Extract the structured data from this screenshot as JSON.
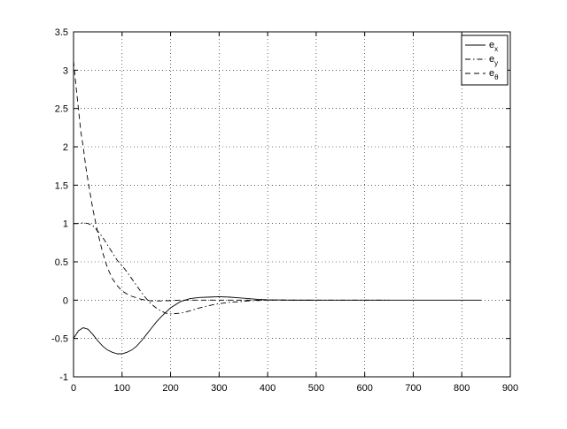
{
  "chart_data": {
    "type": "line",
    "title": "",
    "xlabel": "",
    "ylabel": "",
    "xlim": [
      0,
      900
    ],
    "ylim": [
      -1,
      3.5
    ],
    "xticks": [
      0,
      100,
      200,
      300,
      400,
      500,
      600,
      700,
      800,
      900
    ],
    "yticks": [
      -1,
      -0.5,
      0,
      0.5,
      1,
      1.5,
      2,
      2.5,
      3,
      3.5
    ],
    "xtick_labels": [
      "0",
      "100",
      "200",
      "300",
      "400",
      "500",
      "600",
      "700",
      "800",
      "900"
    ],
    "ytick_labels": [
      "-1",
      "-0.5",
      "0",
      "0.5",
      "1",
      "1.5",
      "2",
      "2.5",
      "3",
      "3.5"
    ],
    "grid": true,
    "legend_position": "top-right",
    "series": [
      {
        "name": "e",
        "subscript": "x",
        "style": "solid",
        "color": "#000000",
        "x": [
          0,
          10,
          20,
          30,
          40,
          50,
          60,
          70,
          80,
          90,
          100,
          110,
          120,
          130,
          140,
          150,
          160,
          170,
          180,
          190,
          200,
          220,
          240,
          260,
          280,
          300,
          320,
          340,
          360,
          380,
          400,
          450,
          500,
          600,
          700,
          840
        ],
        "y": [
          -0.5,
          -0.4,
          -0.36,
          -0.38,
          -0.45,
          -0.53,
          -0.6,
          -0.65,
          -0.68,
          -0.7,
          -0.7,
          -0.68,
          -0.65,
          -0.6,
          -0.53,
          -0.45,
          -0.37,
          -0.29,
          -0.22,
          -0.16,
          -0.1,
          -0.02,
          0.02,
          0.035,
          0.04,
          0.045,
          0.04,
          0.03,
          0.02,
          0.01,
          0.005,
          0,
          0,
          0,
          0,
          0
        ]
      },
      {
        "name": "e",
        "subscript": "y",
        "style": "dashdot",
        "color": "#000000",
        "x": [
          0,
          10,
          20,
          30,
          40,
          50,
          60,
          70,
          80,
          90,
          100,
          110,
          120,
          130,
          140,
          150,
          160,
          170,
          180,
          190,
          200,
          220,
          240,
          260,
          280,
          300,
          320,
          340,
          360,
          380,
          400,
          450,
          500,
          550,
          600,
          650
        ],
        "y": [
          1.0,
          1.0,
          1.01,
          1.0,
          0.97,
          0.9,
          0.82,
          0.72,
          0.62,
          0.52,
          0.45,
          0.37,
          0.28,
          0.19,
          0.1,
          0.02,
          -0.05,
          -0.1,
          -0.14,
          -0.17,
          -0.18,
          -0.17,
          -0.14,
          -0.1,
          -0.07,
          -0.045,
          -0.03,
          -0.02,
          -0.01,
          -0.005,
          0,
          0,
          0,
          0,
          0,
          0
        ]
      },
      {
        "name": "e",
        "subscript": "θ",
        "style": "dashed",
        "color": "#000000",
        "x": [
          0,
          5,
          10,
          15,
          20,
          25,
          30,
          40,
          50,
          60,
          70,
          80,
          90,
          100,
          110,
          120,
          130,
          140,
          150,
          160,
          170,
          180,
          200,
          220,
          250,
          300,
          400,
          500
        ],
        "y": [
          3.12,
          2.8,
          2.5,
          2.2,
          2.0,
          1.75,
          1.55,
          1.18,
          0.88,
          0.62,
          0.42,
          0.28,
          0.19,
          0.12,
          0.08,
          0.05,
          0.03,
          0.01,
          0.0,
          -0.01,
          -0.01,
          -0.01,
          -0.005,
          0,
          0,
          0,
          0,
          0
        ]
      }
    ]
  }
}
